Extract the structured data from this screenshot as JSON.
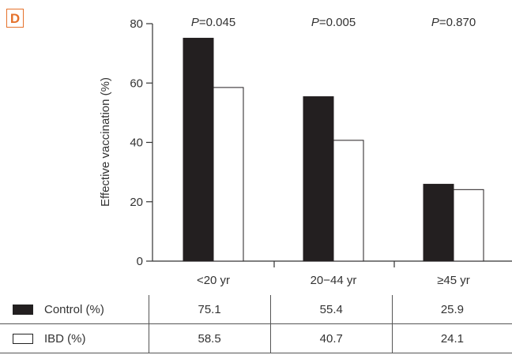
{
  "panel_label": "D",
  "colors": {
    "control": "#231f20",
    "ibd": "#ffffff",
    "accent": "#e5722c"
  },
  "chart_data": {
    "type": "bar",
    "ylabel": "Effective vaccination (%)",
    "ylim": [
      0,
      80
    ],
    "yticks": [
      "0",
      "20",
      "40",
      "60",
      "80"
    ],
    "categories": [
      "<20 yr",
      "20−44 yr",
      "≥45 yr"
    ],
    "p_values": [
      {
        "prefix": "P",
        "text": "=0.045"
      },
      {
        "prefix": "P",
        "text": "=0.005"
      },
      {
        "prefix": "P",
        "text": "=0.870"
      }
    ],
    "series": [
      {
        "name": "Control (%)",
        "values": [
          75.1,
          55.4,
          25.9
        ],
        "display": [
          "75.1",
          "55.4",
          "25.9"
        ]
      },
      {
        "name": "IBD (%)",
        "values": [
          58.5,
          40.7,
          24.1
        ],
        "display": [
          "58.5",
          "40.7",
          "24.1"
        ]
      }
    ]
  }
}
